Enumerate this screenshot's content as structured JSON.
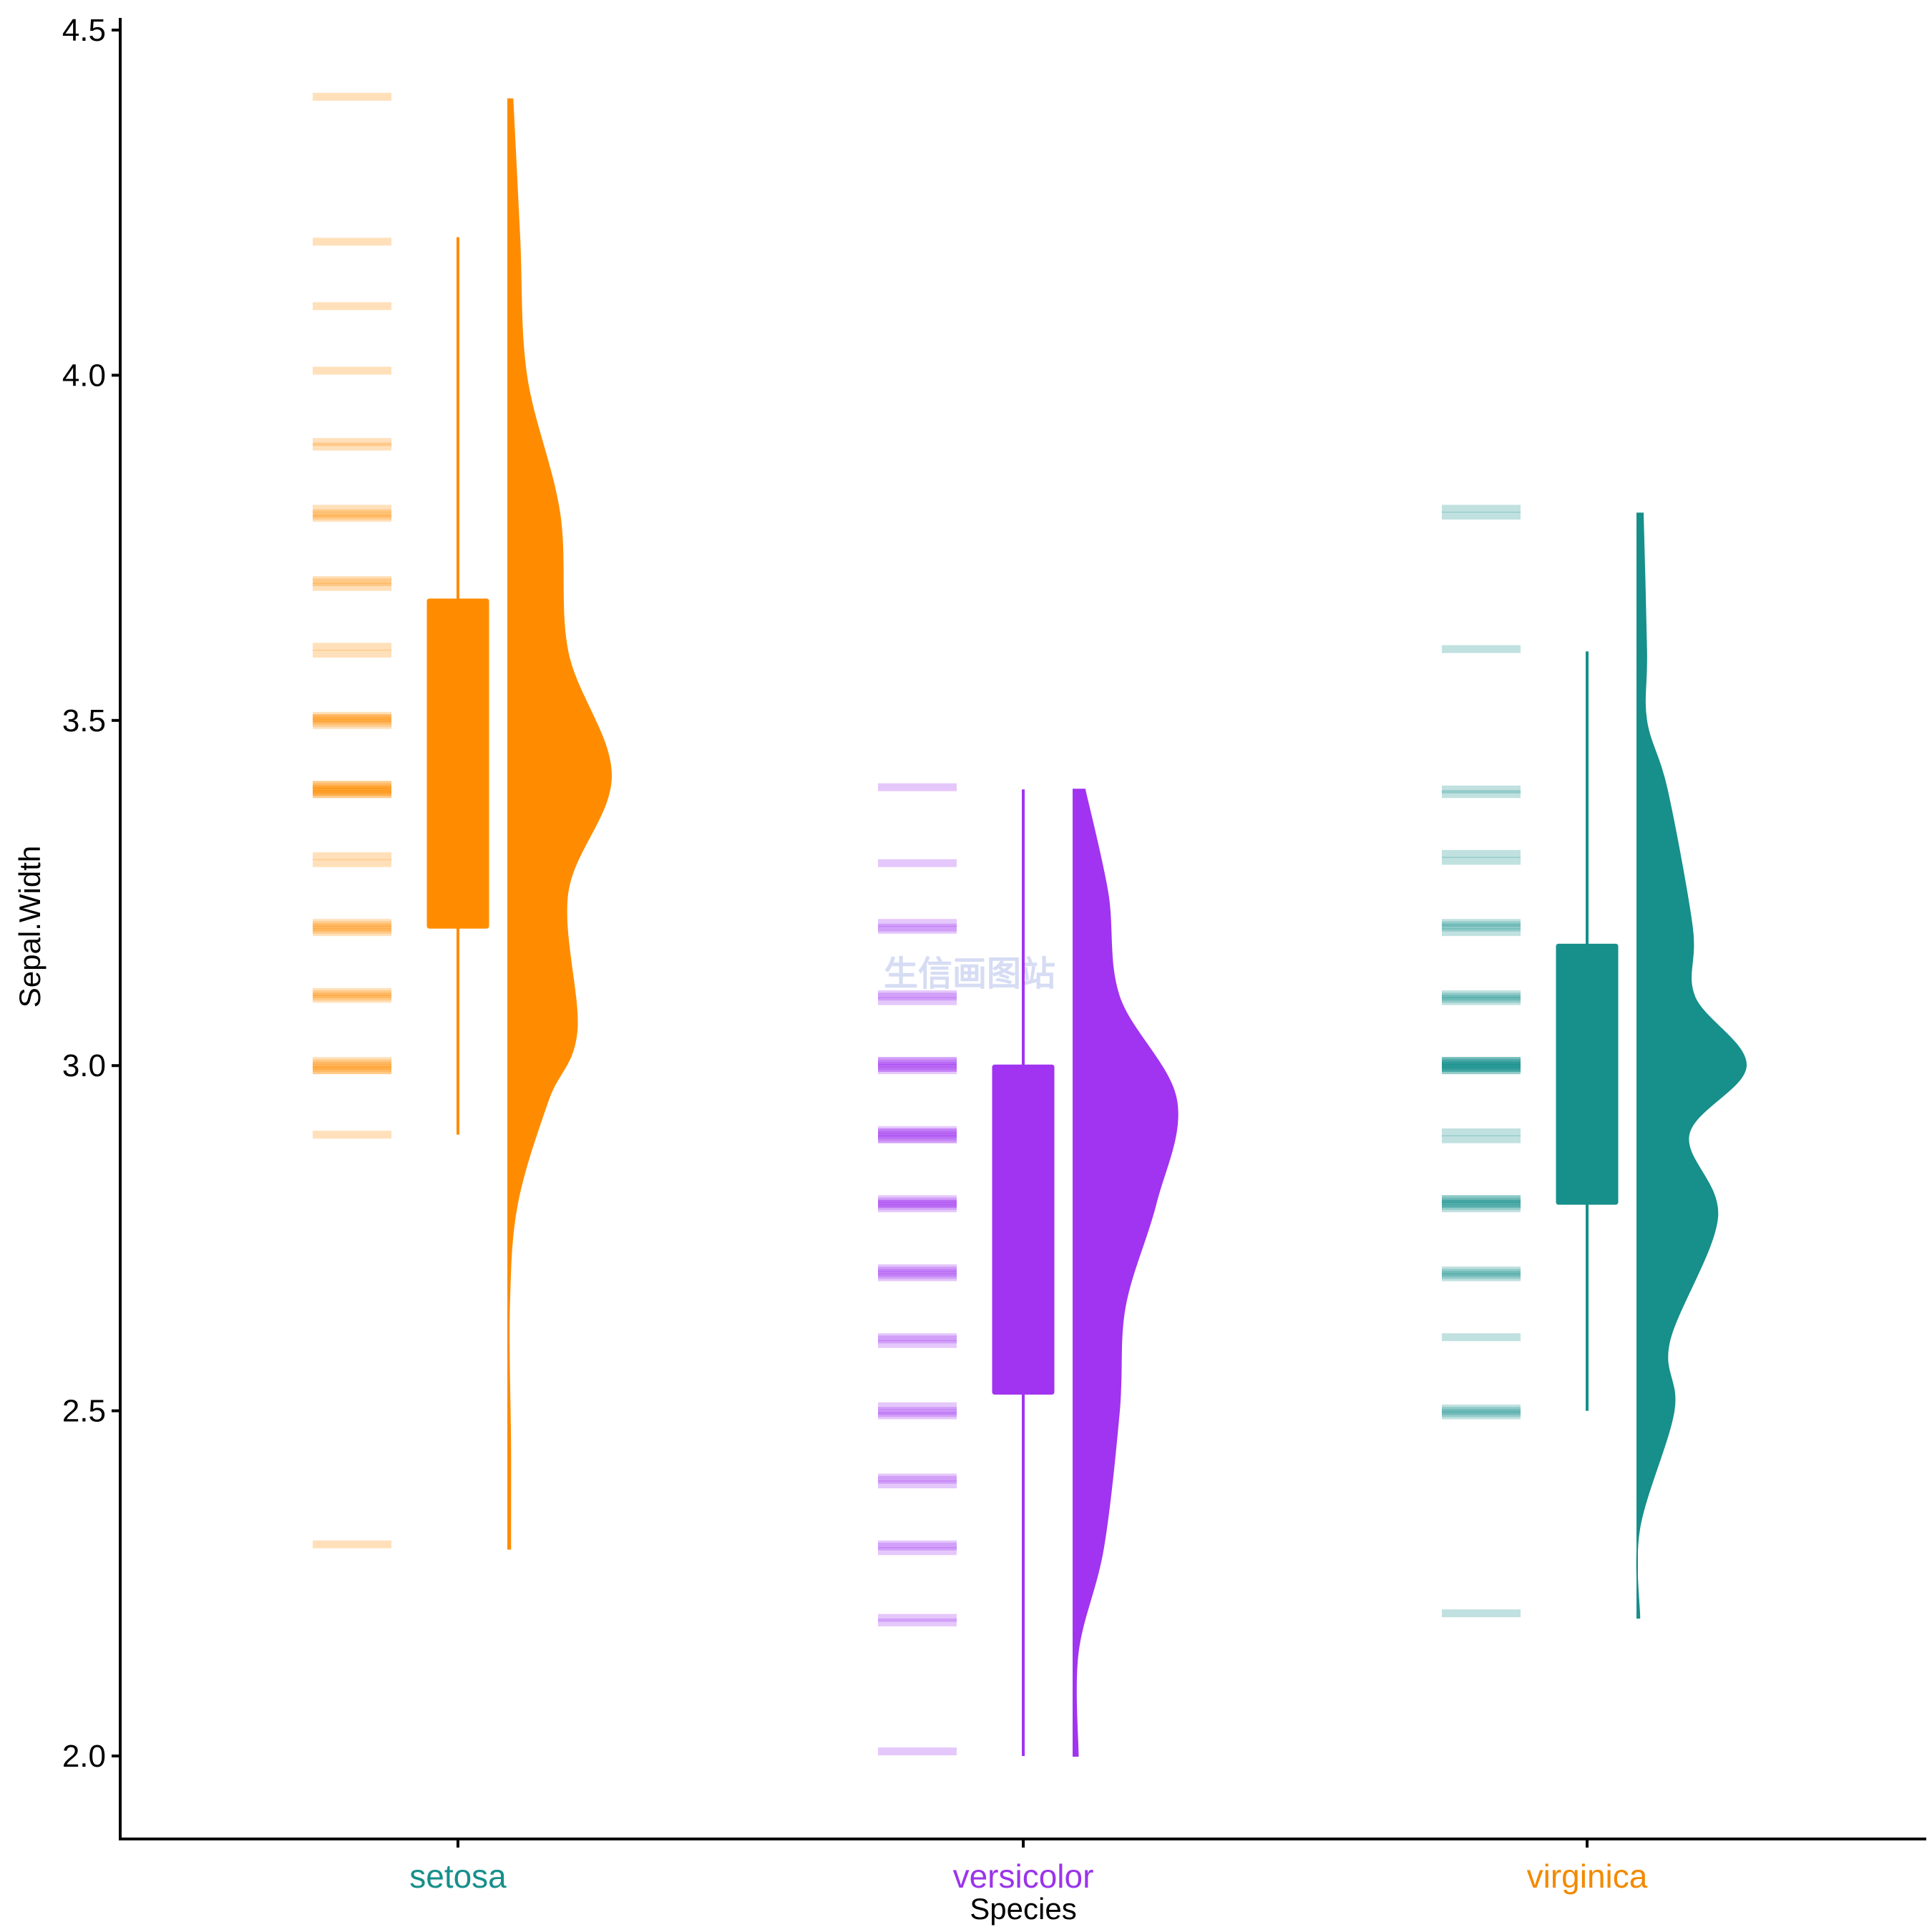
{
  "chart_data": {
    "type": "raincloud",
    "xlabel": "Species",
    "ylabel": "Sepal.Width",
    "ylim": [
      1.88,
      4.52
    ],
    "yticks": [
      2.0,
      2.5,
      3.0,
      3.5,
      4.0,
      4.5
    ],
    "ytick_labels": [
      "2.0",
      "2.5",
      "3.0",
      "3.5",
      "4.0",
      "4.5"
    ],
    "categories": [
      "setosa",
      "versicolor",
      "virginica"
    ],
    "category_label_colors": [
      "#178f8b",
      "#9b34ea",
      "#f28a00"
    ],
    "watermark": "生信画图站",
    "series": [
      {
        "name": "setosa",
        "color": "#ff8c00",
        "box": {
          "min": 2.9,
          "q1": 3.2,
          "median": 3.4,
          "q3": 3.675,
          "max": 4.2
        },
        "points": [
          2.3,
          2.9,
          3.0,
          3.0,
          3.0,
          3.0,
          3.0,
          3.0,
          3.1,
          3.1,
          3.1,
          3.1,
          3.2,
          3.2,
          3.2,
          3.2,
          3.2,
          3.3,
          3.3,
          3.4,
          3.4,
          3.4,
          3.4,
          3.4,
          3.4,
          3.4,
          3.4,
          3.4,
          3.5,
          3.5,
          3.5,
          3.5,
          3.5,
          3.5,
          3.6,
          3.6,
          3.7,
          3.7,
          3.7,
          3.8,
          3.8,
          3.8,
          3.8,
          3.9,
          3.9,
          4.0,
          4.1,
          4.2,
          4.4
        ],
        "density_range": [
          2.3,
          4.4
        ],
        "density_profile": [
          [
            2.3,
            0.02
          ],
          [
            2.45,
            0.02
          ],
          [
            2.65,
            0.01
          ],
          [
            2.8,
            0.08
          ],
          [
            2.95,
            0.35
          ],
          [
            3.05,
            0.6
          ],
          [
            3.25,
            0.52
          ],
          [
            3.42,
            0.9
          ],
          [
            3.6,
            0.52
          ],
          [
            3.8,
            0.45
          ],
          [
            4.0,
            0.16
          ],
          [
            4.2,
            0.1
          ],
          [
            4.4,
            0.04
          ]
        ]
      },
      {
        "name": "versicolor",
        "color": "#a034f0",
        "box": {
          "min": 2.0,
          "q1": 2.525,
          "median": 2.8,
          "q3": 3.0,
          "max": 3.4
        },
        "points": [
          2.0,
          2.2,
          2.2,
          2.3,
          2.3,
          2.3,
          2.4,
          2.4,
          2.4,
          2.5,
          2.5,
          2.5,
          2.5,
          2.6,
          2.6,
          2.6,
          2.7,
          2.7,
          2.7,
          2.7,
          2.7,
          2.8,
          2.8,
          2.8,
          2.8,
          2.8,
          2.8,
          2.9,
          2.9,
          2.9,
          2.9,
          2.9,
          2.9,
          2.9,
          3.0,
          3.0,
          3.0,
          3.0,
          3.0,
          3.0,
          3.0,
          3.1,
          3.1,
          3.1,
          3.2,
          3.2,
          3.2,
          3.3,
          3.4
        ],
        "density_range": [
          2.0,
          3.4
        ],
        "density_profile": [
          [
            2.0,
            0.04
          ],
          [
            2.15,
            0.04
          ],
          [
            2.3,
            0.26
          ],
          [
            2.5,
            0.4
          ],
          [
            2.65,
            0.45
          ],
          [
            2.8,
            0.72
          ],
          [
            2.95,
            0.9
          ],
          [
            3.1,
            0.4
          ],
          [
            3.25,
            0.3
          ],
          [
            3.4,
            0.1
          ]
        ]
      },
      {
        "name": "virginica",
        "color": "#178f8b",
        "box": {
          "min": 2.5,
          "q1": 2.8,
          "median": 3.0,
          "q3": 3.175,
          "max": 3.6
        },
        "points": [
          2.2,
          2.5,
          2.5,
          2.5,
          2.5,
          2.6,
          2.7,
          2.7,
          2.7,
          2.7,
          2.8,
          2.8,
          2.8,
          2.8,
          2.8,
          2.8,
          2.8,
          2.9,
          2.9,
          3.0,
          3.0,
          3.0,
          3.0,
          3.0,
          3.0,
          3.0,
          3.0,
          3.0,
          3.0,
          3.0,
          3.0,
          3.1,
          3.1,
          3.1,
          3.1,
          3.2,
          3.2,
          3.2,
          3.2,
          3.3,
          3.3,
          3.4,
          3.4,
          3.6,
          3.8,
          3.8
        ],
        "density_range": [
          2.2,
          3.8
        ],
        "density_profile": [
          [
            2.2,
            0.02
          ],
          [
            2.33,
            0.02
          ],
          [
            2.5,
            0.32
          ],
          [
            2.6,
            0.28
          ],
          [
            2.78,
            0.7
          ],
          [
            2.9,
            0.45
          ],
          [
            3.0,
            0.95
          ],
          [
            3.1,
            0.5
          ],
          [
            3.2,
            0.48
          ],
          [
            3.4,
            0.26
          ],
          [
            3.5,
            0.08
          ],
          [
            3.6,
            0.08
          ],
          [
            3.8,
            0.05
          ]
        ]
      }
    ]
  }
}
